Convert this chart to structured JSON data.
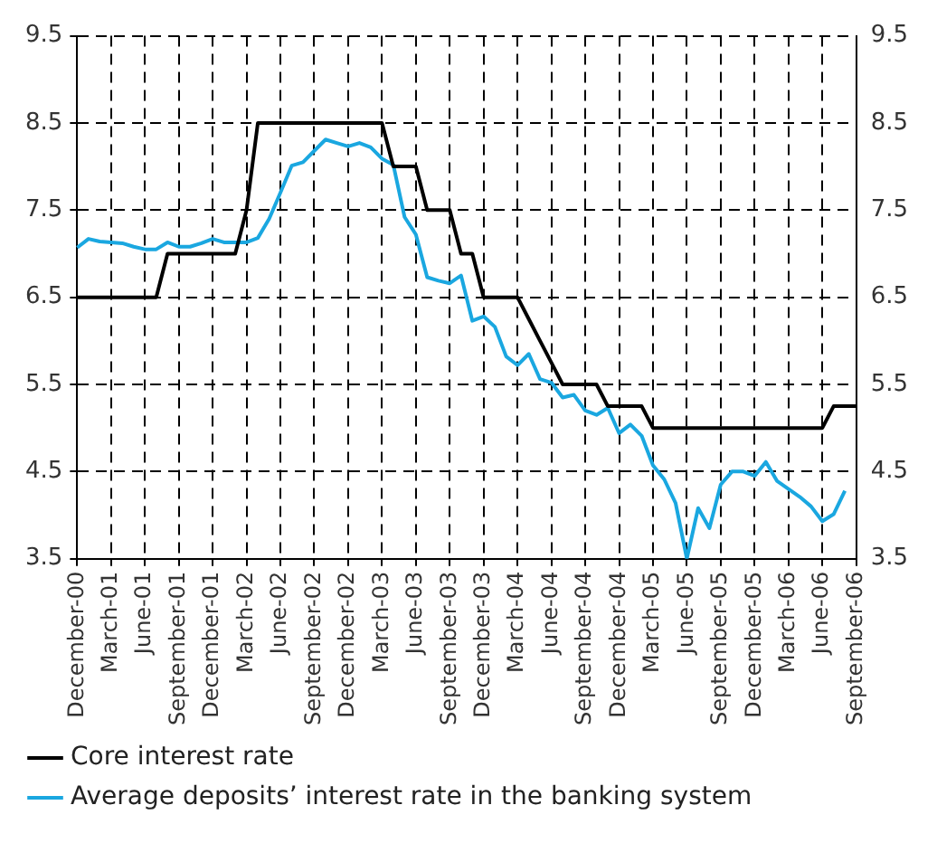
{
  "chart_data": {
    "type": "line",
    "categories": [
      "December-00",
      null,
      null,
      "March-01",
      null,
      null,
      "June-01",
      null,
      null,
      "September-01",
      null,
      null,
      "December-01",
      null,
      null,
      "March-02",
      null,
      null,
      "June-02",
      null,
      null,
      "September-02",
      null,
      null,
      "December-02",
      null,
      null,
      "March-03",
      null,
      null,
      "June-03",
      null,
      null,
      "September-03",
      null,
      null,
      "December-03",
      null,
      null,
      "March-04",
      null,
      null,
      "June-04",
      null,
      null,
      "September-04",
      null,
      null,
      "December-04",
      null,
      null,
      "March-05",
      null,
      null,
      "June-05",
      null,
      null,
      "September-05",
      null,
      null,
      "December-05",
      null,
      null,
      "March-06",
      null,
      null,
      "June-06",
      null,
      null,
      "September-06"
    ],
    "series": [
      {
        "name": "Core interest rate",
        "color": "#000000",
        "values": [
          6.5,
          6.5,
          6.5,
          6.5,
          6.5,
          6.5,
          6.5,
          6.5,
          7.0,
          7.0,
          7.0,
          7.0,
          7.0,
          7.0,
          7.0,
          7.5,
          8.5,
          8.5,
          8.5,
          8.5,
          8.5,
          8.5,
          8.5,
          8.5,
          8.5,
          8.5,
          8.5,
          8.5,
          8.0,
          8.0,
          8.0,
          7.5,
          7.5,
          7.5,
          7.0,
          7.0,
          6.5,
          6.5,
          6.5,
          6.5,
          6.25,
          6.0,
          5.75,
          5.5,
          5.5,
          5.5,
          5.5,
          5.25,
          5.25,
          5.25,
          5.25,
          5.0,
          5.0,
          5.0,
          5.0,
          5.0,
          5.0,
          5.0,
          5.0,
          5.0,
          5.0,
          5.0,
          5.0,
          5.0,
          5.0,
          5.0,
          5.0,
          5.25,
          5.25,
          5.25
        ]
      },
      {
        "name": "Average deposits’ interest rate in the banking system",
        "color": "#1aa7e0",
        "values": [
          7.07,
          7.17,
          7.14,
          7.13,
          7.12,
          7.08,
          7.05,
          7.05,
          7.13,
          7.08,
          7.08,
          7.12,
          7.17,
          7.13,
          7.13,
          7.13,
          7.18,
          7.4,
          7.7,
          8.01,
          8.05,
          8.18,
          8.31,
          8.27,
          8.23,
          8.27,
          8.22,
          8.09,
          8.02,
          7.42,
          7.22,
          6.73,
          6.69,
          6.66,
          6.75,
          6.23,
          6.28,
          6.16,
          5.82,
          5.72,
          5.85,
          5.56,
          5.52,
          5.35,
          5.38,
          5.2,
          5.15,
          5.23,
          4.94,
          5.04,
          4.91,
          4.57,
          4.41,
          4.14,
          3.5,
          4.08,
          3.85,
          4.35,
          4.5,
          4.5,
          4.45,
          4.61,
          4.39,
          4.3,
          4.21,
          4.1,
          3.93,
          4.01,
          4.28,
          null
        ]
      }
    ],
    "ylim": [
      3.5,
      9.5
    ],
    "yticks": [
      3.5,
      4.5,
      5.5,
      6.5,
      7.5,
      8.5,
      9.5
    ],
    "y2lim": [
      3.5,
      9.5
    ],
    "y2ticks": [
      3.5,
      4.5,
      5.5,
      6.5,
      7.5,
      8.5,
      9.5
    ],
    "grid": true,
    "legend": "bottom",
    "marker": "none",
    "line_style": "solid"
  }
}
